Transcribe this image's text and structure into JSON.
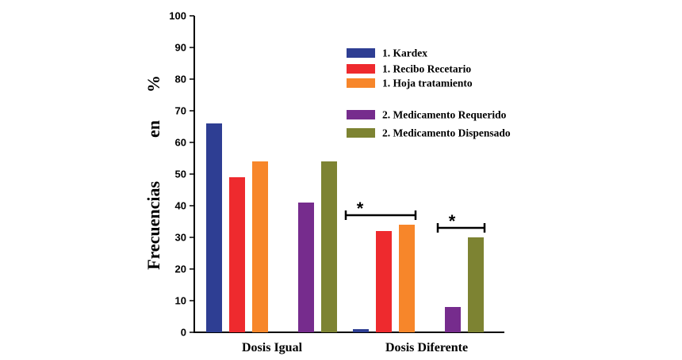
{
  "chart_data": {
    "type": "bar",
    "title": "",
    "xlabel": "",
    "ylabel_parts": [
      "Frecuencias",
      "en",
      "%"
    ],
    "ylim": [
      0,
      100
    ],
    "yticks": [
      "0",
      "10",
      "20",
      "30",
      "40",
      "50",
      "60",
      "70",
      "80",
      "90",
      "100"
    ],
    "categories": [
      "Dosis Igual",
      "Dosis Diferente"
    ],
    "series": [
      {
        "name": "1. Kardex",
        "color": "#2e3e93",
        "values": [
          66,
          1
        ]
      },
      {
        "name": "1. Recibo Recetario",
        "color": "#ee2a2e",
        "values": [
          49,
          32
        ]
      },
      {
        "name": "1. Hoja tratamiento",
        "color": "#f7862a",
        "values": [
          54,
          34
        ]
      },
      {
        "name": "2. Medicamento Requerido",
        "color": "#762c8d",
        "values": [
          41,
          8
        ]
      },
      {
        "name": "2. Medicamento Dispensado",
        "color": "#7d8332",
        "values": [
          54,
          30
        ]
      }
    ],
    "annotations": [
      {
        "text": "*",
        "category": "Dosis Diferente",
        "from_series": 0,
        "to_series": 2,
        "y": 37
      },
      {
        "text": "*",
        "category": "Dosis Diferente",
        "from_series": 3,
        "to_series": 4,
        "y": 33
      }
    ],
    "legend_position": "top-right",
    "grid": false
  }
}
